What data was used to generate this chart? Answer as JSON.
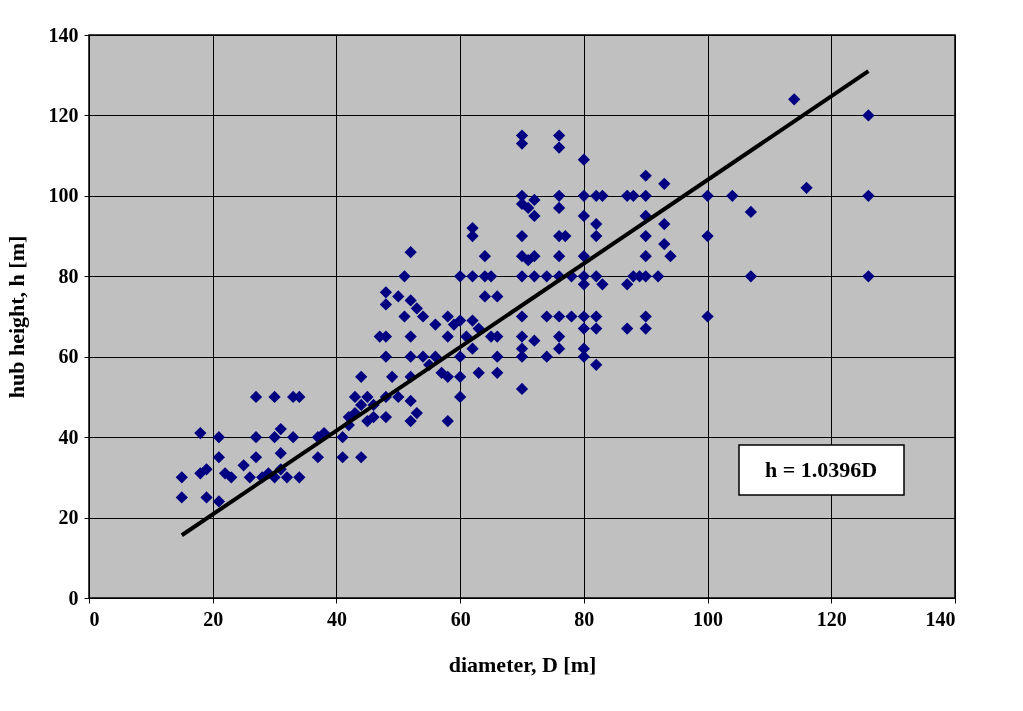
{
  "chart_data": {
    "type": "scatter",
    "xlabel": "diameter, D [m]",
    "ylabel": "hub height, h [m]",
    "xlim": [
      0,
      140
    ],
    "xticks": [
      0,
      20,
      40,
      60,
      80,
      100,
      120,
      140
    ],
    "ylim": [
      0,
      140
    ],
    "yticks": [
      0,
      20,
      40,
      60,
      80,
      100,
      120,
      140
    ],
    "grid": true,
    "annotations": [
      "h = 1.0396D"
    ],
    "series": [
      {
        "color": "#000080",
        "marker": "diamond",
        "x": [
          15,
          15,
          18,
          18,
          19,
          19,
          21,
          21,
          22,
          21,
          23,
          25,
          26,
          27,
          27,
          27,
          28,
          29,
          30,
          30,
          30,
          31,
          31,
          32,
          33,
          34,
          33,
          34,
          31,
          37,
          37,
          38,
          41,
          41,
          42,
          42,
          43,
          43,
          44,
          44,
          44,
          45,
          45,
          46,
          46,
          47,
          48,
          48,
          48,
          48,
          48,
          48,
          49,
          50,
          50,
          51,
          51,
          52,
          52,
          52,
          52,
          52,
          52,
          52,
          53,
          53,
          54,
          54,
          55,
          56,
          56,
          57,
          58,
          58,
          58,
          58,
          59,
          60,
          60,
          60,
          60,
          60,
          61,
          62,
          62,
          62,
          62,
          62,
          63,
          63,
          64,
          64,
          64,
          65,
          65,
          66,
          66,
          66,
          66,
          70,
          70,
          70,
          70,
          70,
          70,
          70,
          70,
          70,
          70,
          70,
          70,
          71,
          71,
          72,
          72,
          72,
          72,
          72,
          74,
          74,
          74,
          76,
          76,
          76,
          76,
          76,
          76,
          76,
          76,
          76,
          76,
          77,
          78,
          78,
          80,
          80,
          80,
          80,
          80,
          80,
          80,
          80,
          80,
          80,
          82,
          82,
          82,
          82,
          82,
          82,
          82,
          83,
          83,
          87,
          87,
          87,
          88,
          88,
          89,
          90,
          90,
          90,
          90,
          90,
          90,
          90,
          90,
          92,
          93,
          93,
          93,
          94,
          100,
          100,
          100,
          104,
          107,
          107,
          114,
          116,
          126,
          126,
          126
        ],
        "values": [
          30,
          25,
          41,
          31,
          32,
          25,
          40,
          35,
          31,
          24,
          30,
          33,
          30,
          50,
          40,
          35,
          30,
          31,
          50,
          40,
          30,
          42,
          36,
          30,
          40,
          50,
          50,
          30,
          32,
          35,
          40,
          41,
          35,
          40,
          45,
          43,
          46,
          50,
          35,
          55,
          48,
          44,
          50,
          48,
          45,
          65,
          76,
          73,
          65,
          60,
          50,
          45,
          55,
          75,
          50,
          80,
          70,
          86,
          74,
          65,
          60,
          55,
          49,
          44,
          46,
          72,
          70,
          60,
          58,
          68,
          60,
          56,
          70,
          65,
          55,
          44,
          68,
          80,
          69,
          60,
          55,
          50,
          65,
          92,
          90,
          80,
          69,
          62,
          67,
          56,
          85,
          80,
          75,
          80,
          65,
          75,
          65,
          60,
          56,
          115,
          113,
          100,
          98,
          90,
          85,
          80,
          70,
          65,
          62,
          60,
          52,
          84,
          97,
          99,
          95,
          80,
          64,
          85,
          70,
          60,
          80,
          115,
          112,
          100,
          97,
          90,
          85,
          80,
          70,
          65,
          62,
          90,
          80,
          70,
          109,
          100,
          95,
          85,
          80,
          78,
          70,
          67,
          62,
          60,
          100,
          93,
          90,
          80,
          70,
          67,
          58,
          100,
          78,
          100,
          78,
          67,
          80,
          100,
          80,
          105,
          100,
          95,
          90,
          85,
          80,
          70,
          67,
          80,
          103,
          93,
          88,
          85,
          100,
          90,
          70,
          100,
          96,
          80,
          124,
          102,
          120,
          100,
          80
        ]
      },
      {
        "type": "line",
        "color": "#000000",
        "marker": "none",
        "x": [
          15,
          126
        ],
        "values": [
          15.6,
          131
        ]
      }
    ]
  }
}
